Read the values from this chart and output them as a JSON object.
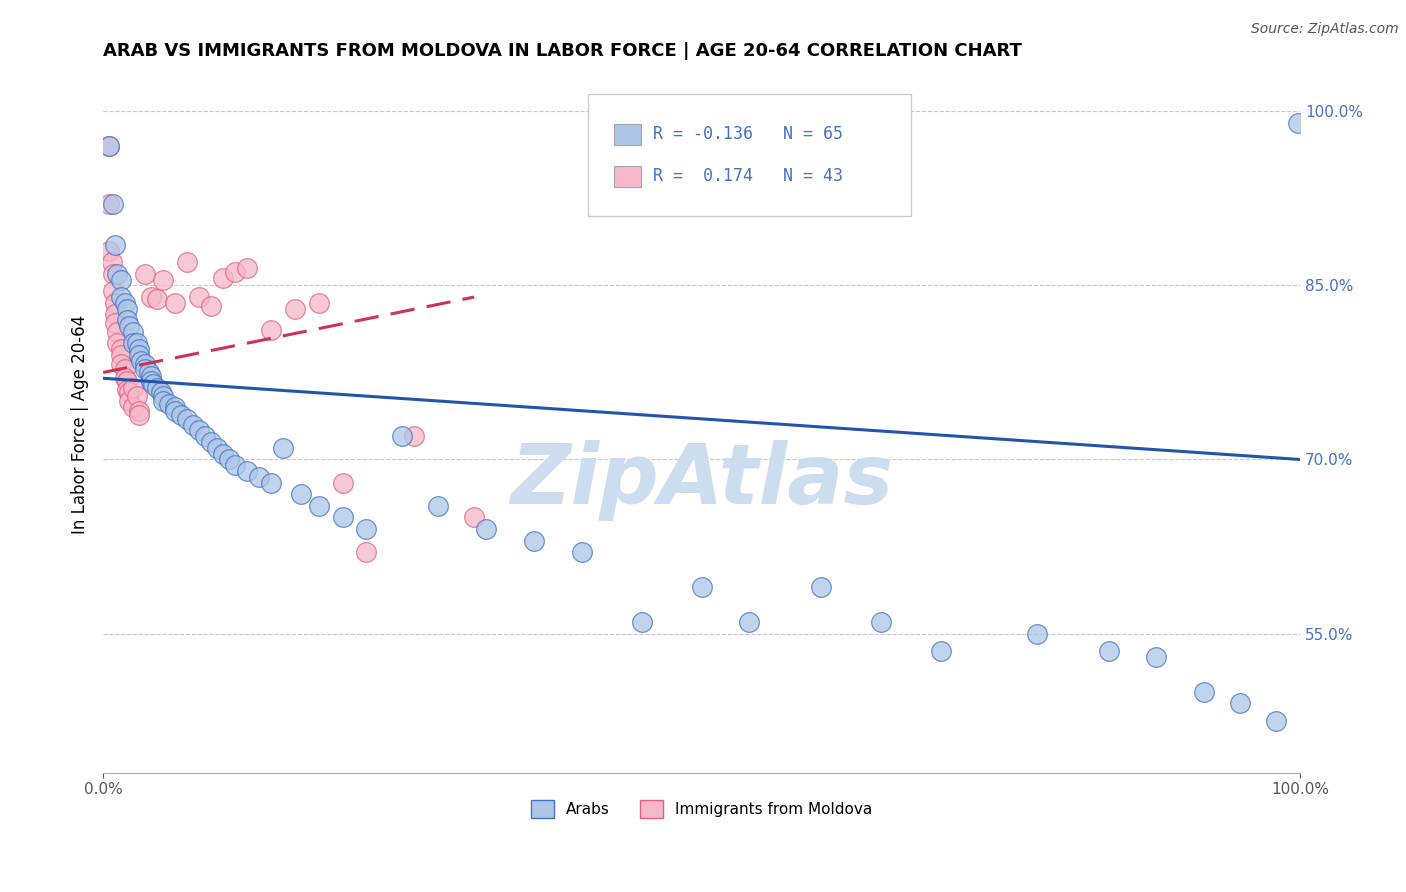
{
  "title": "ARAB VS IMMIGRANTS FROM MOLDOVA IN LABOR FORCE | AGE 20-64 CORRELATION CHART",
  "source": "Source: ZipAtlas.com",
  "ylabel": "In Labor Force | Age 20-64",
  "xlim": [
    0.0,
    1.0
  ],
  "ylim": [
    0.43,
    1.03
  ],
  "ytick_vals": [
    0.55,
    0.7,
    0.85,
    1.0
  ],
  "ytick_labels": [
    "55.0%",
    "70.0%",
    "85.0%",
    "100.0%"
  ],
  "arab_color": "#adc6e8",
  "moldova_color": "#f5b8c8",
  "arab_edge_color": "#4472c4",
  "moldova_edge_color": "#e06080",
  "arab_line_color": "#2255aa",
  "moldova_line_color": "#cc3355",
  "watermark": "ZipAtlas",
  "watermark_color": "#ccddf0",
  "arab_scatter_x": [
    0.005,
    0.008,
    0.01,
    0.012,
    0.015,
    0.015,
    0.018,
    0.02,
    0.02,
    0.022,
    0.025,
    0.025,
    0.028,
    0.03,
    0.03,
    0.032,
    0.035,
    0.035,
    0.038,
    0.04,
    0.04,
    0.042,
    0.045,
    0.048,
    0.05,
    0.05,
    0.055,
    0.06,
    0.06,
    0.065,
    0.07,
    0.075,
    0.08,
    0.085,
    0.09,
    0.095,
    0.1,
    0.105,
    0.11,
    0.12,
    0.13,
    0.14,
    0.15,
    0.165,
    0.18,
    0.2,
    0.22,
    0.25,
    0.28,
    0.32,
    0.36,
    0.4,
    0.45,
    0.5,
    0.54,
    0.6,
    0.65,
    0.7,
    0.78,
    0.84,
    0.88,
    0.92,
    0.95,
    0.98,
    0.998
  ],
  "arab_scatter_y": [
    0.97,
    0.92,
    0.885,
    0.86,
    0.855,
    0.84,
    0.835,
    0.83,
    0.82,
    0.815,
    0.81,
    0.8,
    0.8,
    0.795,
    0.79,
    0.785,
    0.782,
    0.778,
    0.775,
    0.772,
    0.768,
    0.765,
    0.762,
    0.758,
    0.755,
    0.75,
    0.748,
    0.745,
    0.742,
    0.738,
    0.735,
    0.73,
    0.725,
    0.72,
    0.715,
    0.71,
    0.705,
    0.7,
    0.695,
    0.69,
    0.685,
    0.68,
    0.71,
    0.67,
    0.66,
    0.65,
    0.64,
    0.72,
    0.66,
    0.64,
    0.63,
    0.62,
    0.56,
    0.59,
    0.56,
    0.59,
    0.56,
    0.535,
    0.55,
    0.535,
    0.53,
    0.5,
    0.49,
    0.475,
    0.99
  ],
  "moldova_scatter_x": [
    0.005,
    0.005,
    0.005,
    0.007,
    0.008,
    0.008,
    0.01,
    0.01,
    0.01,
    0.012,
    0.012,
    0.015,
    0.015,
    0.015,
    0.018,
    0.018,
    0.02,
    0.02,
    0.022,
    0.022,
    0.025,
    0.025,
    0.028,
    0.03,
    0.03,
    0.035,
    0.04,
    0.045,
    0.05,
    0.06,
    0.07,
    0.08,
    0.09,
    0.1,
    0.11,
    0.12,
    0.14,
    0.16,
    0.18,
    0.2,
    0.22,
    0.26,
    0.31
  ],
  "moldova_scatter_y": [
    0.97,
    0.92,
    0.88,
    0.87,
    0.86,
    0.845,
    0.835,
    0.825,
    0.818,
    0.81,
    0.8,
    0.795,
    0.79,
    0.782,
    0.778,
    0.77,
    0.768,
    0.76,
    0.758,
    0.75,
    0.762,
    0.745,
    0.755,
    0.742,
    0.738,
    0.86,
    0.84,
    0.838,
    0.855,
    0.835,
    0.87,
    0.84,
    0.832,
    0.856,
    0.862,
    0.865,
    0.812,
    0.83,
    0.835,
    0.68,
    0.62,
    0.72,
    0.65
  ],
  "arab_trend_x": [
    0.0,
    1.0
  ],
  "arab_trend_y": [
    0.77,
    0.7
  ],
  "moldova_trend_x": [
    0.0,
    0.31
  ],
  "moldova_trend_y": [
    0.775,
    0.84
  ]
}
